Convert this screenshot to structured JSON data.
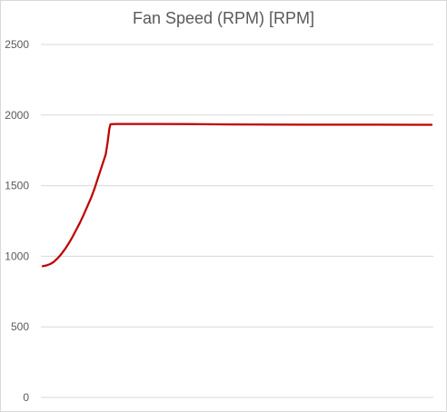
{
  "chart_data": {
    "type": "line",
    "title": "Fan Speed (RPM) [RPM]",
    "xlabel": "",
    "ylabel": "",
    "ylim": [
      0,
      2500
    ],
    "yticks": [
      "0",
      "500",
      "1000",
      "1500",
      "2000",
      "2500"
    ],
    "grid": true,
    "legend": "none",
    "series": [
      {
        "color": "#c00000",
        "points": [
          [
            0,
            930
          ],
          [
            1,
            935
          ],
          [
            2,
            945
          ],
          [
            3,
            960
          ],
          [
            4,
            985
          ],
          [
            5,
            1015
          ],
          [
            6,
            1050
          ],
          [
            7,
            1090
          ],
          [
            8,
            1135
          ],
          [
            9,
            1185
          ],
          [
            10,
            1235
          ],
          [
            11,
            1290
          ],
          [
            12,
            1350
          ],
          [
            13,
            1410
          ],
          [
            14,
            1480
          ],
          [
            15,
            1560
          ],
          [
            16,
            1640
          ],
          [
            17,
            1720
          ],
          [
            17.5,
            1800
          ],
          [
            18,
            1905
          ],
          [
            18.3,
            1935
          ],
          [
            20,
            1937
          ],
          [
            30,
            1937
          ],
          [
            40,
            1936
          ],
          [
            50,
            1934
          ],
          [
            60,
            1933
          ],
          [
            70,
            1932
          ],
          [
            80,
            1932
          ],
          [
            90,
            1932
          ],
          [
            100,
            1931
          ],
          [
            105,
            1931
          ]
        ]
      }
    ],
    "xlim": [
      0,
      105
    ]
  }
}
